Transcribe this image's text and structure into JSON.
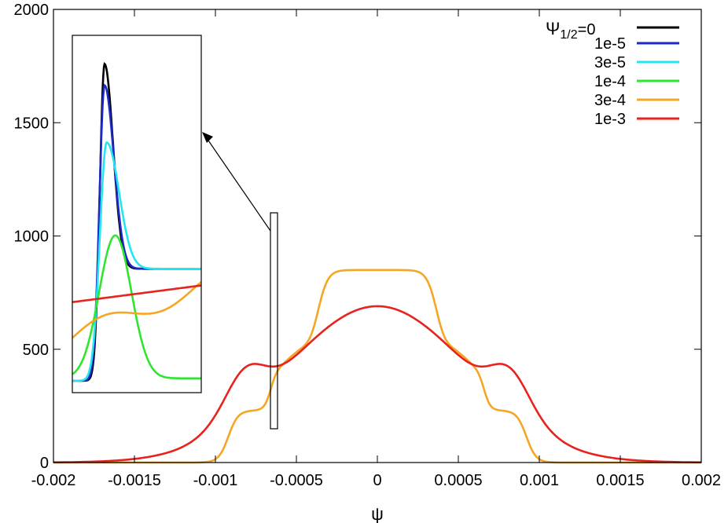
{
  "chart_data": {
    "type": "line",
    "title": "",
    "xlabel": "ψ",
    "ylabel": "",
    "xlim": [
      -0.002,
      0.002
    ],
    "ylim": [
      0,
      2000
    ],
    "grid": false,
    "legend_position": "top-right",
    "x_ticks": [
      -0.002,
      -0.0015,
      -0.001,
      -0.0005,
      0,
      0.0005,
      0.001,
      0.0015,
      0.002
    ],
    "x_tick_labels": [
      "-0.002",
      "-0.0015",
      "-0.001",
      "-0.0005",
      "0",
      "0.0005",
      "0.001",
      "0.0015",
      "0.002"
    ],
    "y_ticks": [
      0,
      500,
      1000,
      1500,
      2000
    ],
    "y_tick_labels": [
      "0",
      "500",
      "1000",
      "1500",
      "2000"
    ],
    "legend_title_prefix": "Ψ",
    "legend_title_sub": "1/2",
    "legend_title_suffix": "=0",
    "series": [
      {
        "name": "=0",
        "color": "#000000"
      },
      {
        "name": "1e-5",
        "color": "#1c28c8"
      },
      {
        "name": "3e-5",
        "color": "#22e6f0"
      },
      {
        "name": "1e-4",
        "color": "#2ee62e"
      },
      {
        "name": "3e-4",
        "color": "#f5a623"
      },
      {
        "name": "1e-3",
        "color": "#e8221c"
      }
    ],
    "legend_labels": [
      "1e-5",
      "3e-5",
      "1e-4",
      "3e-4",
      "1e-3"
    ],
    "inset_region": {
      "x": [
        -0.00065,
        -0.0006
      ],
      "y": [
        145,
        1100
      ]
    }
  }
}
